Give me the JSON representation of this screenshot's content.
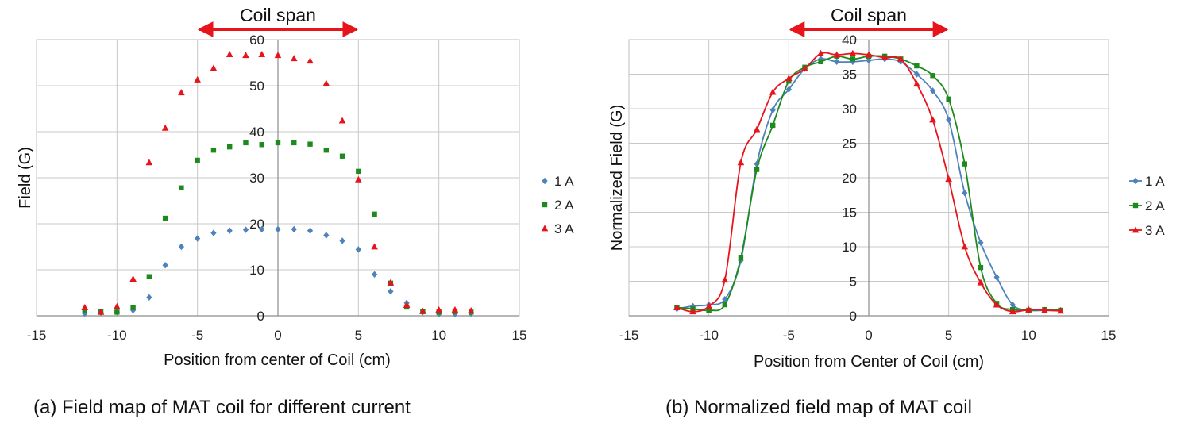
{
  "chart_data": [
    {
      "type": "scatter",
      "title": "",
      "caption": "(a) Field map of MAT coil for different current",
      "xlabel": "Position from center of Coil (cm)",
      "ylabel": "Field (G)",
      "xlim": [
        -15,
        15
      ],
      "ylim": [
        0,
        60
      ],
      "xticks": [
        -15,
        -10,
        -5,
        0,
        5,
        10,
        15
      ],
      "yticks": [
        0,
        10,
        20,
        30,
        40,
        50,
        60
      ],
      "grid": true,
      "legend_position": "right",
      "annotation": {
        "text": "Coil span",
        "from": -5,
        "to": 5,
        "color": "#e8141b"
      },
      "series": [
        {
          "name": "1 A",
          "marker": "diamond",
          "color": "#4f81bd",
          "x": [
            -12,
            -11,
            -10,
            -9,
            -8,
            -7,
            -6,
            -5,
            -4,
            -3,
            -2,
            -1,
            0,
            1,
            2,
            3,
            4,
            5,
            6,
            7,
            8,
            9,
            10,
            11,
            12
          ],
          "y": [
            0.5,
            0.7,
            0.8,
            1.2,
            4,
            11,
            15,
            16.8,
            18,
            18.5,
            18.7,
            18.8,
            18.8,
            18.8,
            18.5,
            17.5,
            16.3,
            14.4,
            9,
            5.3,
            2.8,
            0.8,
            0.4,
            0.4,
            0.5
          ]
        },
        {
          "name": "2 A",
          "marker": "square",
          "color": "#1d8a1d",
          "x": [
            -12,
            -11,
            -10,
            -9,
            -8,
            -7,
            -6,
            -5,
            -4,
            -3,
            -2,
            -1,
            0,
            1,
            2,
            3,
            4,
            5,
            6,
            7,
            8,
            9,
            10,
            11,
            12
          ],
          "y": [
            1.2,
            1,
            0.8,
            1.8,
            8.5,
            21.2,
            27.8,
            33.8,
            36,
            36.7,
            37.6,
            37.2,
            37.6,
            37.6,
            37.3,
            36,
            34.7,
            31.4,
            22.1,
            7.1,
            1.9,
            0.9,
            0.8,
            0.9,
            0.8
          ]
        },
        {
          "name": "3 A",
          "marker": "triangle",
          "color": "#e8141b",
          "x": [
            -12,
            -11,
            -10,
            -9,
            -8,
            -7,
            -6,
            -5,
            -4,
            -3,
            -2,
            -1,
            0,
            1,
            2,
            3,
            4,
            5,
            6,
            7,
            8,
            9,
            10,
            11,
            12
          ],
          "y": [
            1.8,
            0.8,
            2,
            8,
            33.3,
            40.8,
            48.5,
            51.3,
            53.8,
            56.8,
            56.6,
            56.8,
            56.6,
            55.9,
            55.4,
            50.5,
            42.4,
            29.6,
            15,
            7.2,
            2.3,
            1,
            1.3,
            1.3,
            1.1
          ]
        }
      ]
    },
    {
      "type": "line",
      "title": "",
      "caption": "(b) Normalized field map of MAT coil",
      "xlabel": "Position from Center of Coil (cm)",
      "ylabel": "Normalized Field (G)",
      "xlim": [
        -15,
        15
      ],
      "ylim": [
        0,
        40
      ],
      "xticks": [
        -15,
        -10,
        -5,
        0,
        5,
        10,
        15
      ],
      "yticks": [
        0,
        5,
        10,
        15,
        20,
        25,
        30,
        35,
        40
      ],
      "grid": true,
      "legend_position": "right",
      "annotation": {
        "text": "Coil span",
        "from": -5,
        "to": 5,
        "color": "#e8141b"
      },
      "series": [
        {
          "name": "1 A",
          "marker": "diamond",
          "color": "#4f81bd",
          "x": [
            -12,
            -11,
            -10,
            -9,
            -8,
            -7,
            -6,
            -5,
            -4,
            -3,
            -2,
            -1,
            0,
            1,
            2,
            3,
            4,
            5,
            6,
            7,
            8,
            9,
            10,
            11,
            12
          ],
          "y": [
            1,
            1.4,
            1.6,
            2.4,
            8,
            22,
            29.8,
            32.8,
            35.8,
            37.2,
            36.8,
            36.8,
            37,
            37.2,
            36.8,
            35,
            32.6,
            28.4,
            17.8,
            10.6,
            5.6,
            1.6,
            0.8,
            0.8,
            0.8
          ]
        },
        {
          "name": "2 A",
          "marker": "square",
          "color": "#1d8a1d",
          "x": [
            -12,
            -11,
            -10,
            -9,
            -8,
            -7,
            -6,
            -5,
            -4,
            -3,
            -2,
            -1,
            0,
            1,
            2,
            3,
            4,
            5,
            6,
            7,
            8,
            9,
            10,
            11,
            12
          ],
          "y": [
            1.2,
            1,
            0.8,
            1.6,
            8.4,
            21.2,
            27.6,
            34,
            36,
            36.8,
            37.6,
            37.2,
            37.6,
            37.6,
            37.2,
            36.2,
            34.8,
            31.4,
            22,
            7,
            1.8,
            0.9,
            0.8,
            0.9,
            0.8
          ]
        },
        {
          "name": "3 A",
          "marker": "triangle",
          "color": "#e8141b",
          "x": [
            -12,
            -11,
            -10,
            -9,
            -8,
            -7,
            -6,
            -5,
            -4,
            -3,
            -2,
            -1,
            0,
            1,
            2,
            3,
            4,
            5,
            6,
            7,
            8,
            9,
            10,
            11,
            12
          ],
          "y": [
            1.2,
            0.6,
            1.4,
            5.2,
            22.2,
            27,
            32.4,
            34.4,
            35.8,
            38,
            37.8,
            38,
            37.8,
            37.4,
            37.2,
            33.6,
            28.4,
            19.8,
            10,
            4.8,
            1.6,
            0.6,
            0.9,
            0.8,
            0.7
          ]
        }
      ]
    }
  ]
}
